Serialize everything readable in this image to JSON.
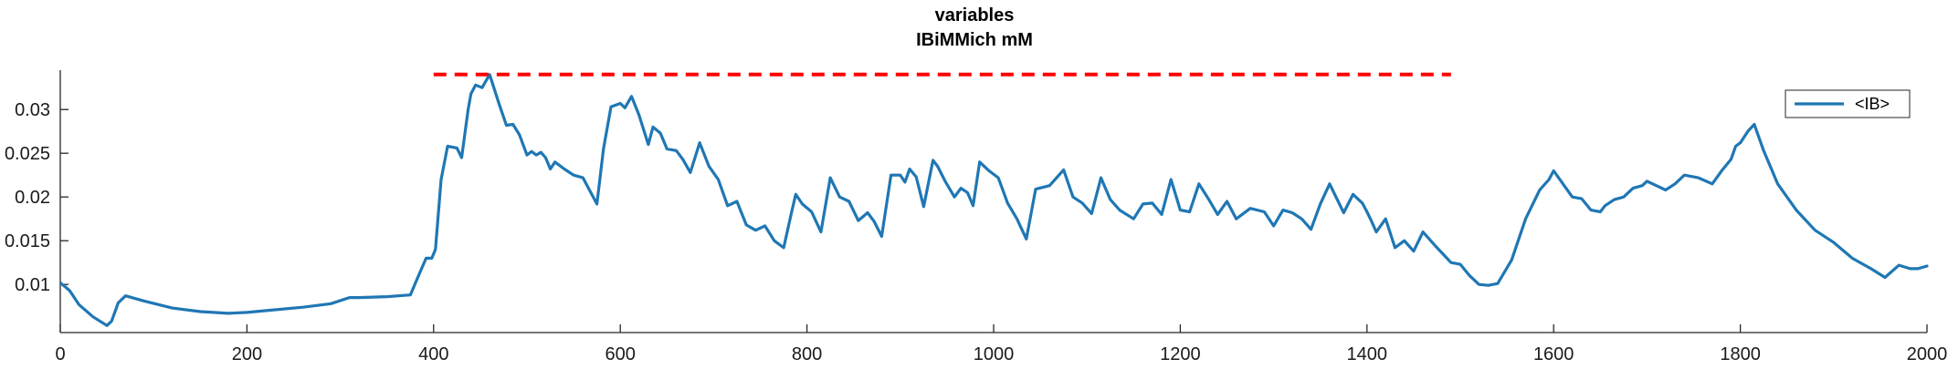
{
  "chart_data": {
    "type": "line",
    "title": "variables",
    "subtitle": "IBiMMich mM",
    "xlabel": "",
    "ylabel": "",
    "xlim": [
      0,
      2000
    ],
    "ylim": [
      0.0045,
      0.0345
    ],
    "xticks": [
      0,
      200,
      400,
      600,
      800,
      1000,
      1200,
      1400,
      1600,
      1800,
      2000
    ],
    "xtick_labels": [
      "0",
      "200",
      "400",
      "600",
      "800",
      "1000",
      "1200",
      "1400",
      "1600",
      "1800",
      "2000"
    ],
    "yticks": [
      0.01,
      0.015,
      0.02,
      0.025,
      0.03
    ],
    "ytick_labels": [
      "0.01",
      "0.015",
      "0.02",
      "0.025",
      "0.03"
    ],
    "grid": false,
    "legend_position": "top-right",
    "series": [
      {
        "name": "<IB>",
        "color": "#1f77b4",
        "x": [
          0,
          10,
          20,
          35,
          50,
          55,
          62,
          70,
          90,
          120,
          150,
          180,
          200,
          230,
          260,
          290,
          310,
          320,
          350,
          375,
          385,
          392,
          398,
          402,
          408,
          415,
          425,
          430,
          437,
          440,
          445,
          452,
          460,
          470,
          478,
          485,
          492,
          500,
          505,
          510,
          515,
          520,
          525,
          530,
          540,
          550,
          560,
          575,
          582,
          590,
          600,
          605,
          612,
          620,
          630,
          635,
          643,
          650,
          660,
          667,
          675,
          685,
          695,
          705,
          715,
          725,
          735,
          745,
          755,
          765,
          775,
          783,
          788,
          795,
          805,
          815,
          825,
          835,
          845,
          855,
          865,
          872,
          880,
          890,
          900,
          905,
          910,
          917,
          925,
          935,
          940,
          948,
          958,
          965,
          972,
          978,
          985,
          995,
          1005,
          1015,
          1025,
          1035,
          1045,
          1060,
          1075,
          1085,
          1095,
          1105,
          1115,
          1125,
          1135,
          1150,
          1160,
          1170,
          1180,
          1190,
          1200,
          1210,
          1220,
          1230,
          1240,
          1250,
          1260,
          1275,
          1290,
          1300,
          1310,
          1320,
          1330,
          1340,
          1350,
          1360,
          1375,
          1385,
          1395,
          1400,
          1405,
          1410,
          1420,
          1430,
          1440,
          1450,
          1460,
          1475,
          1483,
          1490,
          1500,
          1510,
          1520,
          1530,
          1540,
          1555,
          1570,
          1585,
          1595,
          1600,
          1610,
          1620,
          1630,
          1640,
          1650,
          1655,
          1665,
          1675,
          1685,
          1695,
          1700,
          1710,
          1720,
          1730,
          1740,
          1755,
          1770,
          1780,
          1790,
          1795,
          1800,
          1808,
          1815,
          1825,
          1840,
          1860,
          1880,
          1900,
          1920,
          1940,
          1955,
          1970,
          1982,
          1990,
          2000
        ],
        "y": [
          0.0102,
          0.0093,
          0.0077,
          0.0063,
          0.0053,
          0.0058,
          0.0079,
          0.0087,
          0.0081,
          0.0073,
          0.0069,
          0.0067,
          0.0068,
          0.0071,
          0.0074,
          0.0078,
          0.0085,
          0.0085,
          0.0086,
          0.0088,
          0.0113,
          0.013,
          0.013,
          0.014,
          0.022,
          0.0258,
          0.0256,
          0.0245,
          0.03,
          0.0318,
          0.0328,
          0.0325,
          0.034,
          0.0307,
          0.0282,
          0.0283,
          0.0271,
          0.0248,
          0.0252,
          0.0248,
          0.0251,
          0.0245,
          0.0232,
          0.024,
          0.0232,
          0.0225,
          0.0222,
          0.0192,
          0.0255,
          0.0303,
          0.0307,
          0.0302,
          0.0315,
          0.0294,
          0.026,
          0.028,
          0.0273,
          0.0255,
          0.0253,
          0.0243,
          0.0228,
          0.0262,
          0.0235,
          0.022,
          0.019,
          0.0195,
          0.0168,
          0.0162,
          0.0167,
          0.015,
          0.0142,
          0.018,
          0.0203,
          0.0192,
          0.0183,
          0.016,
          0.0222,
          0.02,
          0.0195,
          0.0173,
          0.0182,
          0.0172,
          0.0155,
          0.0225,
          0.0225,
          0.0217,
          0.0232,
          0.0223,
          0.0189,
          0.0242,
          0.0235,
          0.0218,
          0.02,
          0.021,
          0.0205,
          0.019,
          0.024,
          0.023,
          0.0222,
          0.0193,
          0.0175,
          0.0152,
          0.0209,
          0.0213,
          0.0231,
          0.02,
          0.0193,
          0.0181,
          0.0222,
          0.0197,
          0.0185,
          0.0175,
          0.0192,
          0.0193,
          0.018,
          0.022,
          0.0185,
          0.0183,
          0.0215,
          0.0198,
          0.018,
          0.0195,
          0.0175,
          0.0187,
          0.0183,
          0.0167,
          0.0185,
          0.0182,
          0.0175,
          0.0163,
          0.0192,
          0.0215,
          0.0182,
          0.0203,
          0.0193,
          0.0183,
          0.0172,
          0.016,
          0.0175,
          0.0142,
          0.015,
          0.0138,
          0.016,
          0.0142,
          0.0133,
          0.0125,
          0.0123,
          0.011,
          0.01,
          0.0099,
          0.0101,
          0.0128,
          0.0175,
          0.0208,
          0.022,
          0.023,
          0.0215,
          0.02,
          0.0198,
          0.0185,
          0.0183,
          0.019,
          0.0197,
          0.02,
          0.021,
          0.0213,
          0.0218,
          0.0213,
          0.0208,
          0.0215,
          0.0225,
          0.0222,
          0.0215,
          0.023,
          0.0243,
          0.0258,
          0.0262,
          0.0275,
          0.0283,
          0.0253,
          0.0215,
          0.0185,
          0.0162,
          0.0148,
          0.013,
          0.0118,
          0.0108,
          0.0122,
          0.0118,
          0.0118,
          0.0121
        ]
      },
      {
        "name": "",
        "color": "#ff0000",
        "style": "dashed",
        "x": [
          400,
          1490
        ],
        "y": [
          0.034,
          0.034
        ]
      }
    ]
  }
}
